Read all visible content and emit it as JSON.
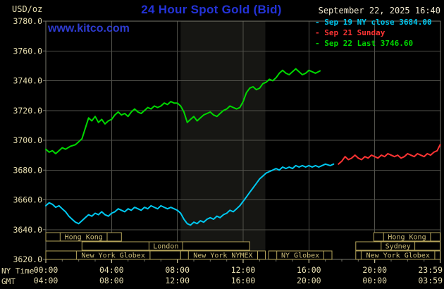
{
  "header": {
    "units": "USD/oz",
    "title": "24 Hour Spot Gold (Bid)",
    "datetime": "September 22, 2025 16:40"
  },
  "watermark": "www.kitco.com",
  "legend": [
    {
      "label": "Sep 19 NY close 3684.00",
      "color": "#00c8f0"
    },
    {
      "label": "Sep 21 Sunday",
      "color": "#ff3434"
    },
    {
      "label": "Sep 22 Last 3746.60",
      "color": "#00d800"
    }
  ],
  "axes": {
    "ny_time_label": "NY Time",
    "gmt_label": "GMT"
  },
  "colors": {
    "grid": "#50504a",
    "border": "#79796c",
    "band": "#161613",
    "axis_text": "#e8dfb0",
    "session_border": "#b5a45a",
    "session_text": "#cdbd78",
    "title_blue": "#2433d8",
    "watermark_blue": "#2e3bd0"
  },
  "sessions": [
    {
      "row": 0,
      "start": 0.0,
      "end": 4.6,
      "label": "Hong Kong"
    },
    {
      "row": 0,
      "start": 19.95,
      "end": 23.98,
      "label": "Hong Kong"
    },
    {
      "row": 1,
      "start": 2.2,
      "end": 12.4,
      "label": "London"
    },
    {
      "row": 1,
      "start": 18.85,
      "end": 23.98,
      "label": "Sydney"
    },
    {
      "row": 2,
      "start": 0.0,
      "end": 8.2,
      "label": "New York Globex"
    },
    {
      "row": 2,
      "start": 8.2,
      "end": 13.35,
      "label": "New York NYMEX"
    },
    {
      "row": 2,
      "start": 13.55,
      "end": 17.4,
      "label": "NY Globex"
    },
    {
      "row": 2,
      "start": 18.85,
      "end": 23.98,
      "label": "New York Globex"
    }
  ],
  "chart_data": {
    "type": "line",
    "title": "24 Hour Spot Gold (Bid)",
    "xlabel": "NY Time",
    "ylabel": "USD/oz",
    "ylim": [
      3620,
      3780
    ],
    "y_step": 20,
    "xlim_hours": [
      0,
      24
    ],
    "grid": true,
    "legend_position": "top-right",
    "nymex_band_hours": [
      8.2,
      13.35
    ],
    "x_ticks": [
      {
        "h": 0,
        "ny": "00:00",
        "gmt": "04:00"
      },
      {
        "h": 4,
        "ny": "04:00",
        "gmt": "08:00"
      },
      {
        "h": 8,
        "ny": "08:00",
        "gmt": "12:00"
      },
      {
        "h": 12,
        "ny": "12:00",
        "gmt": "16:00"
      },
      {
        "h": 16,
        "ny": "16:00",
        "gmt": "20:00"
      },
      {
        "h": 20,
        "ny": "20:00",
        "gmt": "00:00"
      },
      {
        "h": 23.983,
        "ny": "23:59",
        "gmt": "03:59"
      }
    ],
    "series": [
      {
        "name": "Sep 19 NY close 3684.00",
        "color": "#00c8f0",
        "points": [
          [
            0.0,
            3656
          ],
          [
            0.2,
            3658
          ],
          [
            0.4,
            3657
          ],
          [
            0.6,
            3655
          ],
          [
            0.8,
            3656
          ],
          [
            1.0,
            3654
          ],
          [
            1.2,
            3652
          ],
          [
            1.4,
            3649
          ],
          [
            1.6,
            3647
          ],
          [
            1.8,
            3645
          ],
          [
            2.0,
            3644
          ],
          [
            2.2,
            3646
          ],
          [
            2.4,
            3648
          ],
          [
            2.6,
            3650
          ],
          [
            2.8,
            3649
          ],
          [
            3.0,
            3651
          ],
          [
            3.2,
            3650
          ],
          [
            3.4,
            3652
          ],
          [
            3.6,
            3650
          ],
          [
            3.8,
            3649
          ],
          [
            4.0,
            3651
          ],
          [
            4.2,
            3652
          ],
          [
            4.4,
            3654
          ],
          [
            4.6,
            3653
          ],
          [
            4.8,
            3652
          ],
          [
            5.0,
            3654
          ],
          [
            5.2,
            3653
          ],
          [
            5.4,
            3655
          ],
          [
            5.6,
            3654
          ],
          [
            5.8,
            3653
          ],
          [
            6.0,
            3655
          ],
          [
            6.2,
            3654
          ],
          [
            6.4,
            3656
          ],
          [
            6.6,
            3655
          ],
          [
            6.8,
            3654
          ],
          [
            7.0,
            3656
          ],
          [
            7.2,
            3655
          ],
          [
            7.4,
            3654
          ],
          [
            7.6,
            3655
          ],
          [
            7.8,
            3654
          ],
          [
            8.0,
            3653
          ],
          [
            8.2,
            3651
          ],
          [
            8.4,
            3647
          ],
          [
            8.6,
            3644
          ],
          [
            8.8,
            3643
          ],
          [
            9.0,
            3645
          ],
          [
            9.2,
            3644
          ],
          [
            9.4,
            3646
          ],
          [
            9.6,
            3645
          ],
          [
            9.8,
            3647
          ],
          [
            10.0,
            3648
          ],
          [
            10.2,
            3647
          ],
          [
            10.4,
            3649
          ],
          [
            10.6,
            3648
          ],
          [
            10.8,
            3650
          ],
          [
            11.0,
            3651
          ],
          [
            11.2,
            3653
          ],
          [
            11.4,
            3652
          ],
          [
            11.6,
            3654
          ],
          [
            11.8,
            3656
          ],
          [
            12.0,
            3659
          ],
          [
            12.2,
            3662
          ],
          [
            12.4,
            3665
          ],
          [
            12.6,
            3668
          ],
          [
            12.8,
            3671
          ],
          [
            13.0,
            3674
          ],
          [
            13.2,
            3676
          ],
          [
            13.4,
            3678
          ],
          [
            13.6,
            3679
          ],
          [
            13.8,
            3680
          ],
          [
            14.0,
            3681
          ],
          [
            14.2,
            3680
          ],
          [
            14.4,
            3682
          ],
          [
            14.6,
            3681
          ],
          [
            14.8,
            3682
          ],
          [
            15.0,
            3681
          ],
          [
            15.2,
            3683
          ],
          [
            15.4,
            3682
          ],
          [
            15.6,
            3683
          ],
          [
            15.8,
            3682
          ],
          [
            16.0,
            3683
          ],
          [
            16.2,
            3682
          ],
          [
            16.4,
            3683
          ],
          [
            16.6,
            3682
          ],
          [
            16.8,
            3683
          ],
          [
            17.0,
            3684
          ],
          [
            17.3,
            3683
          ],
          [
            17.5,
            3684
          ]
        ]
      },
      {
        "name": "Sep 21 Sunday",
        "color": "#ff3434",
        "points": [
          [
            17.8,
            3684
          ],
          [
            18.0,
            3686
          ],
          [
            18.2,
            3689
          ],
          [
            18.4,
            3687
          ],
          [
            18.6,
            3688
          ],
          [
            18.8,
            3690
          ],
          [
            19.0,
            3688
          ],
          [
            19.2,
            3687
          ],
          [
            19.4,
            3689
          ],
          [
            19.6,
            3688
          ],
          [
            19.8,
            3690
          ],
          [
            20.0,
            3689
          ],
          [
            20.2,
            3688
          ],
          [
            20.4,
            3690
          ],
          [
            20.6,
            3689
          ],
          [
            20.8,
            3691
          ],
          [
            21.0,
            3690
          ],
          [
            21.2,
            3689
          ],
          [
            21.4,
            3690
          ],
          [
            21.6,
            3688
          ],
          [
            21.8,
            3689
          ],
          [
            22.0,
            3691
          ],
          [
            22.2,
            3690
          ],
          [
            22.4,
            3689
          ],
          [
            22.6,
            3691
          ],
          [
            22.8,
            3690
          ],
          [
            23.0,
            3689
          ],
          [
            23.2,
            3691
          ],
          [
            23.4,
            3690
          ],
          [
            23.6,
            3692
          ],
          [
            23.8,
            3693
          ],
          [
            23.98,
            3697
          ]
        ]
      },
      {
        "name": "Sep 22 Last 3746.60",
        "color": "#00d800",
        "points": [
          [
            0.0,
            3694
          ],
          [
            0.2,
            3692
          ],
          [
            0.4,
            3693
          ],
          [
            0.6,
            3691
          ],
          [
            0.8,
            3693
          ],
          [
            1.0,
            3695
          ],
          [
            1.2,
            3694
          ],
          [
            1.5,
            3696
          ],
          [
            1.8,
            3697
          ],
          [
            2.0,
            3699
          ],
          [
            2.2,
            3701
          ],
          [
            2.4,
            3708
          ],
          [
            2.6,
            3715
          ],
          [
            2.8,
            3713
          ],
          [
            3.0,
            3716
          ],
          [
            3.2,
            3712
          ],
          [
            3.4,
            3714
          ],
          [
            3.6,
            3711
          ],
          [
            3.8,
            3713
          ],
          [
            4.0,
            3714
          ],
          [
            4.2,
            3717
          ],
          [
            4.4,
            3719
          ],
          [
            4.6,
            3717
          ],
          [
            4.8,
            3718
          ],
          [
            5.0,
            3716
          ],
          [
            5.2,
            3719
          ],
          [
            5.4,
            3721
          ],
          [
            5.6,
            3719
          ],
          [
            5.8,
            3718
          ],
          [
            6.0,
            3720
          ],
          [
            6.2,
            3722
          ],
          [
            6.4,
            3721
          ],
          [
            6.6,
            3723
          ],
          [
            6.8,
            3722
          ],
          [
            7.0,
            3723
          ],
          [
            7.2,
            3725
          ],
          [
            7.4,
            3724
          ],
          [
            7.6,
            3726
          ],
          [
            7.8,
            3725
          ],
          [
            8.0,
            3725
          ],
          [
            8.2,
            3723
          ],
          [
            8.4,
            3719
          ],
          [
            8.6,
            3712
          ],
          [
            8.8,
            3714
          ],
          [
            9.0,
            3716
          ],
          [
            9.2,
            3713
          ],
          [
            9.4,
            3715
          ],
          [
            9.6,
            3717
          ],
          [
            9.8,
            3718
          ],
          [
            10.0,
            3719
          ],
          [
            10.2,
            3717
          ],
          [
            10.4,
            3716
          ],
          [
            10.6,
            3718
          ],
          [
            10.8,
            3720
          ],
          [
            11.0,
            3721
          ],
          [
            11.2,
            3723
          ],
          [
            11.4,
            3722
          ],
          [
            11.6,
            3721
          ],
          [
            11.8,
            3722
          ],
          [
            12.0,
            3726
          ],
          [
            12.2,
            3732
          ],
          [
            12.4,
            3735
          ],
          [
            12.6,
            3736
          ],
          [
            12.8,
            3734
          ],
          [
            13.0,
            3735
          ],
          [
            13.2,
            3738
          ],
          [
            13.4,
            3739
          ],
          [
            13.6,
            3741
          ],
          [
            13.8,
            3740
          ],
          [
            14.0,
            3742
          ],
          [
            14.2,
            3745
          ],
          [
            14.4,
            3747
          ],
          [
            14.6,
            3745
          ],
          [
            14.8,
            3744
          ],
          [
            15.0,
            3746
          ],
          [
            15.2,
            3748
          ],
          [
            15.4,
            3746
          ],
          [
            15.6,
            3744
          ],
          [
            15.8,
            3745
          ],
          [
            16.0,
            3747
          ],
          [
            16.2,
            3746
          ],
          [
            16.4,
            3745
          ],
          [
            16.67,
            3746.6
          ]
        ]
      }
    ]
  }
}
